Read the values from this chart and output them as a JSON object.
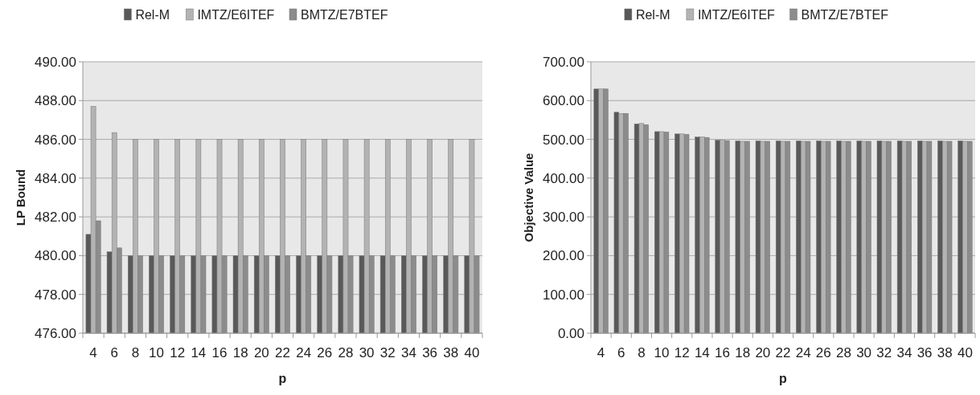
{
  "chart_data": [
    {
      "type": "bar",
      "xlabel": "p",
      "ylabel": "LP Bound",
      "categories": [
        "4",
        "6",
        "8",
        "10",
        "12",
        "14",
        "16",
        "18",
        "20",
        "22",
        "24",
        "26",
        "28",
        "30",
        "32",
        "34",
        "36",
        "38",
        "40"
      ],
      "series": [
        {
          "name": "Rel-M",
          "color": "#595959",
          "values": [
            481.1,
            480.2,
            480,
            480,
            480,
            480,
            480,
            480,
            480,
            480,
            480,
            480,
            480,
            480,
            480,
            480,
            480,
            480,
            480
          ]
        },
        {
          "name": "IMTZ/E6ITEF",
          "color": "#b3b3b3",
          "values": [
            487.7,
            486.35,
            486,
            486,
            486,
            486,
            486,
            486,
            486,
            486,
            486,
            486,
            486,
            486,
            486,
            486,
            486,
            486,
            486
          ]
        },
        {
          "name": "BMTZ/E7BTEF",
          "color": "#8c8c8c",
          "values": [
            481.8,
            480.4,
            480,
            480,
            480,
            480,
            480,
            480,
            480,
            480,
            480,
            480,
            480,
            480,
            480,
            480,
            480,
            480,
            480
          ]
        }
      ],
      "ylim": [
        476,
        490
      ],
      "yticks": [
        {
          "value": 476,
          "label": "476.00"
        },
        {
          "value": 478,
          "label": "478.00"
        },
        {
          "value": 480,
          "label": "480.00"
        },
        {
          "value": 482,
          "label": "482.00"
        },
        {
          "value": 484,
          "label": "484.00"
        },
        {
          "value": 486,
          "label": "486.00"
        },
        {
          "value": 488,
          "label": "488.00"
        },
        {
          "value": 490,
          "label": "490.00"
        }
      ],
      "grid": "y",
      "legend": "top"
    },
    {
      "type": "bar",
      "xlabel": "p",
      "ylabel": "Objective Value",
      "categories": [
        "4",
        "6",
        "8",
        "10",
        "12",
        "14",
        "16",
        "18",
        "20",
        "22",
        "24",
        "26",
        "28",
        "30",
        "32",
        "34",
        "36",
        "38",
        "40"
      ],
      "series": [
        {
          "name": "Rel-M",
          "color": "#595959",
          "values": [
            630,
            570,
            540,
            520,
            514,
            506,
            498,
            496,
            496,
            496,
            496,
            496,
            496,
            496,
            496,
            496,
            496,
            496,
            496
          ]
        },
        {
          "name": "IMTZ/E6ITEF",
          "color": "#b3b3b3",
          "values": [
            630,
            567,
            541,
            520,
            514,
            506,
            498,
            495,
            495,
            495,
            495,
            495,
            495,
            495,
            495,
            495,
            495,
            495,
            495
          ]
        },
        {
          "name": "BMTZ/E7BTEF",
          "color": "#8c8c8c",
          "values": [
            630,
            567,
            538,
            519,
            513,
            505,
            497,
            495,
            495,
            495,
            495,
            495,
            495,
            495,
            495,
            495,
            495,
            495,
            495
          ]
        }
      ],
      "ylim": [
        0,
        700
      ],
      "yticks": [
        {
          "value": 0,
          "label": "0.00"
        },
        {
          "value": 100,
          "label": "100.00"
        },
        {
          "value": 200,
          "label": "200.00"
        },
        {
          "value": 300,
          "label": "300.00"
        },
        {
          "value": 400,
          "label": "400.00"
        },
        {
          "value": 500,
          "label": "500.00"
        },
        {
          "value": 600,
          "label": "600.00"
        },
        {
          "value": 700,
          "label": "700.00"
        }
      ],
      "grid": "y",
      "legend": "top"
    }
  ]
}
